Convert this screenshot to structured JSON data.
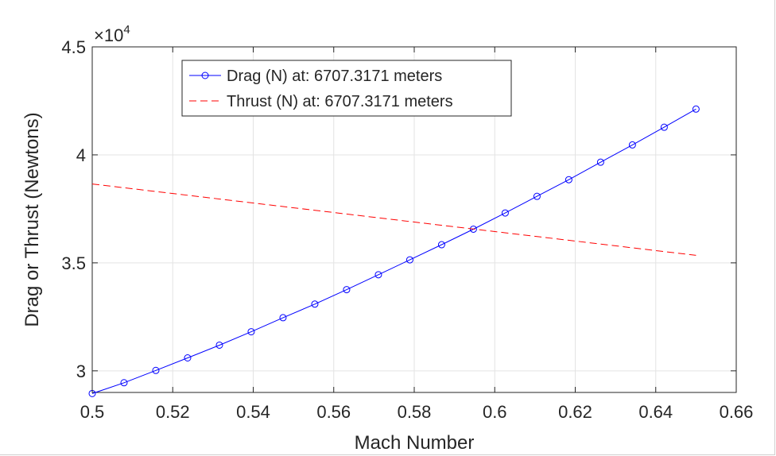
{
  "chart_data": {
    "type": "line",
    "xlabel": "Mach Number",
    "ylabel": "Drag or Thrust (Newtons)",
    "xlim": [
      0.5,
      0.66
    ],
    "ylim": [
      29000,
      45000
    ],
    "y_exponent_label": "×10",
    "y_exponent_power": "4",
    "x_ticks": [
      0.5,
      0.52,
      0.54,
      0.56,
      0.58,
      0.6,
      0.62,
      0.64,
      0.66
    ],
    "x_tick_labels": [
      "0.5",
      "0.52",
      "0.54",
      "0.56",
      "0.58",
      "0.6",
      "0.62",
      "0.64",
      "0.66"
    ],
    "y_ticks": [
      30000,
      35000,
      40000,
      45000
    ],
    "y_tick_labels": [
      "3",
      "3.5",
      "4",
      "4.5"
    ],
    "grid": true,
    "legend_position": "top-left",
    "series": [
      {
        "name": "Drag (N) at: 6707.3171 meters",
        "color": "#0000ff",
        "line_style": "solid",
        "marker": "circle",
        "x": [
          0.5,
          0.5079,
          0.5158,
          0.5237,
          0.5316,
          0.5395,
          0.5474,
          0.5553,
          0.5632,
          0.5711,
          0.5789,
          0.5868,
          0.5947,
          0.6026,
          0.6105,
          0.6184,
          0.6263,
          0.6342,
          0.6421,
          0.65
        ],
        "y": [
          28950,
          29450,
          30020,
          30600,
          31190,
          31810,
          32460,
          33090,
          33760,
          34450,
          35140,
          35840,
          36560,
          37310,
          38080,
          38850,
          39660,
          40460,
          41280,
          42120
        ]
      },
      {
        "name": "Thrust (N) at: 6707.3171 meters",
        "color": "#ff0000",
        "line_style": "dashed",
        "marker": "none",
        "x": [
          0.5,
          0.65
        ],
        "y": [
          38650,
          35350
        ]
      }
    ]
  }
}
